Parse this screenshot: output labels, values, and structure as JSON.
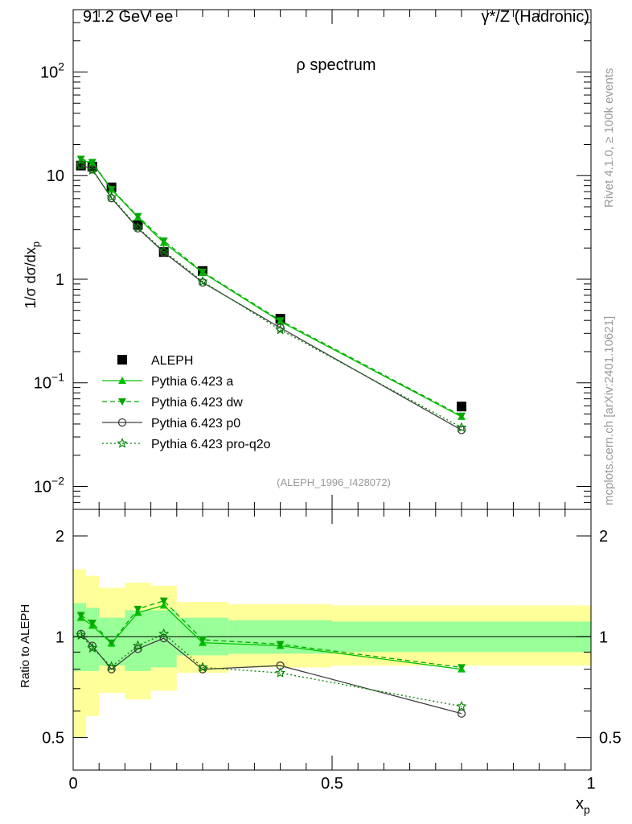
{
  "header": {
    "energy_label": "91.2 GeV ee",
    "process_prefix": "γ*/Z ",
    "process_suffix": "(Hadronic)"
  },
  "side_labels": {
    "rivet": "Rivet 4.1.0, ≥ 100k events",
    "mcplots": "mcplots.cern.ch [arXiv:2401.10621]"
  },
  "colors": {
    "data": "#000000",
    "pythia_a": "#00c000",
    "pythia_dw": "#00a800",
    "pythia_p0": "#404040",
    "pythia_proq2o": "#008000",
    "band_inner": "#99ff99",
    "band_outer": "#ffff99"
  },
  "chart_data": [
    {
      "type": "line",
      "title": "ρ spectrum",
      "ylabel": "1/σ  dσ/dx_p",
      "xlabel": "x_p",
      "yscale": "log",
      "xlim": [
        0,
        1
      ],
      "ylim": [
        0.006,
        400
      ],
      "y_ticks": [
        "10^-2",
        "10^-1",
        "1",
        "10",
        "10^2"
      ],
      "annotation": "(ALEPH_1996_I428072)",
      "x": [
        0.015,
        0.037,
        0.074,
        0.125,
        0.175,
        0.25,
        0.4,
        0.75
      ],
      "series": [
        {
          "name": "ALEPH",
          "marker": "square",
          "style": "points",
          "values": [
            12.5,
            12.2,
            7.7,
            3.35,
            1.83,
            1.2,
            0.415,
            0.059
          ]
        },
        {
          "name": "Pythia 6.423 a",
          "marker": "triangle-up",
          "style": "solid",
          "values": [
            14.2,
            13.2,
            7.35,
            3.95,
            2.25,
            1.16,
            0.39,
            0.047
          ]
        },
        {
          "name": "Pythia 6.423 dw",
          "marker": "triangle-down",
          "style": "dashed",
          "values": [
            14.5,
            13.5,
            7.4,
            4.05,
            2.35,
            1.18,
            0.4,
            0.048
          ]
        },
        {
          "name": "Pythia 6.423 p0",
          "marker": "circle",
          "style": "solid",
          "values": [
            12.7,
            11.5,
            6.05,
            3.1,
            1.82,
            0.93,
            0.34,
            0.035
          ]
        },
        {
          "name": "Pythia 6.423 pro-q2o",
          "marker": "star",
          "style": "dotted",
          "values": [
            12.6,
            11.3,
            6.2,
            3.15,
            1.87,
            0.95,
            0.325,
            0.037
          ]
        }
      ]
    },
    {
      "type": "line",
      "title": "",
      "ylabel": "Ratio to ALEPH",
      "xlabel": "x_p",
      "yscale": "log",
      "xlim": [
        0,
        1
      ],
      "ylim": [
        0.4,
        2.4
      ],
      "y_ticks": [
        "0.5",
        "1",
        "2"
      ],
      "x_ticks": [
        "0",
        "0.5",
        "1"
      ],
      "bin_edges": [
        0,
        0.025,
        0.05,
        0.1,
        0.15,
        0.2,
        0.3,
        0.5,
        1.0
      ],
      "band_inner": [
        [
          0.79,
          1.26
        ],
        [
          0.79,
          1.22
        ],
        [
          0.82,
          1.14
        ],
        [
          0.79,
          1.2
        ],
        [
          0.81,
          1.2
        ],
        [
          0.88,
          1.14
        ],
        [
          0.89,
          1.12
        ],
        [
          0.9,
          1.11
        ]
      ],
      "band_outer": [
        [
          0.5,
          1.59
        ],
        [
          0.58,
          1.52
        ],
        [
          0.68,
          1.4
        ],
        [
          0.65,
          1.45
        ],
        [
          0.69,
          1.42
        ],
        [
          0.78,
          1.27
        ],
        [
          0.81,
          1.25
        ],
        [
          0.82,
          1.24
        ]
      ],
      "x": [
        0.015,
        0.037,
        0.074,
        0.125,
        0.175,
        0.25,
        0.4,
        0.75
      ],
      "series": [
        {
          "name": "Pythia 6.423 a",
          "marker": "triangle-up",
          "style": "solid",
          "values": [
            1.14,
            1.08,
            0.955,
            1.18,
            1.24,
            0.96,
            0.94,
            0.8
          ]
        },
        {
          "name": "Pythia 6.423 dw",
          "marker": "triangle-down",
          "style": "dashed",
          "values": [
            1.16,
            1.1,
            0.96,
            1.21,
            1.28,
            0.98,
            0.95,
            0.81
          ]
        },
        {
          "name": "Pythia 6.423 p0",
          "marker": "circle",
          "style": "solid",
          "values": [
            1.02,
            0.94,
            0.8,
            0.92,
            0.99,
            0.8,
            0.82,
            0.59
          ]
        },
        {
          "name": "Pythia 6.423 pro-q2o",
          "marker": "star",
          "style": "dotted",
          "values": [
            1.01,
            0.925,
            0.815,
            0.94,
            1.02,
            0.81,
            0.78,
            0.62
          ]
        }
      ]
    }
  ]
}
